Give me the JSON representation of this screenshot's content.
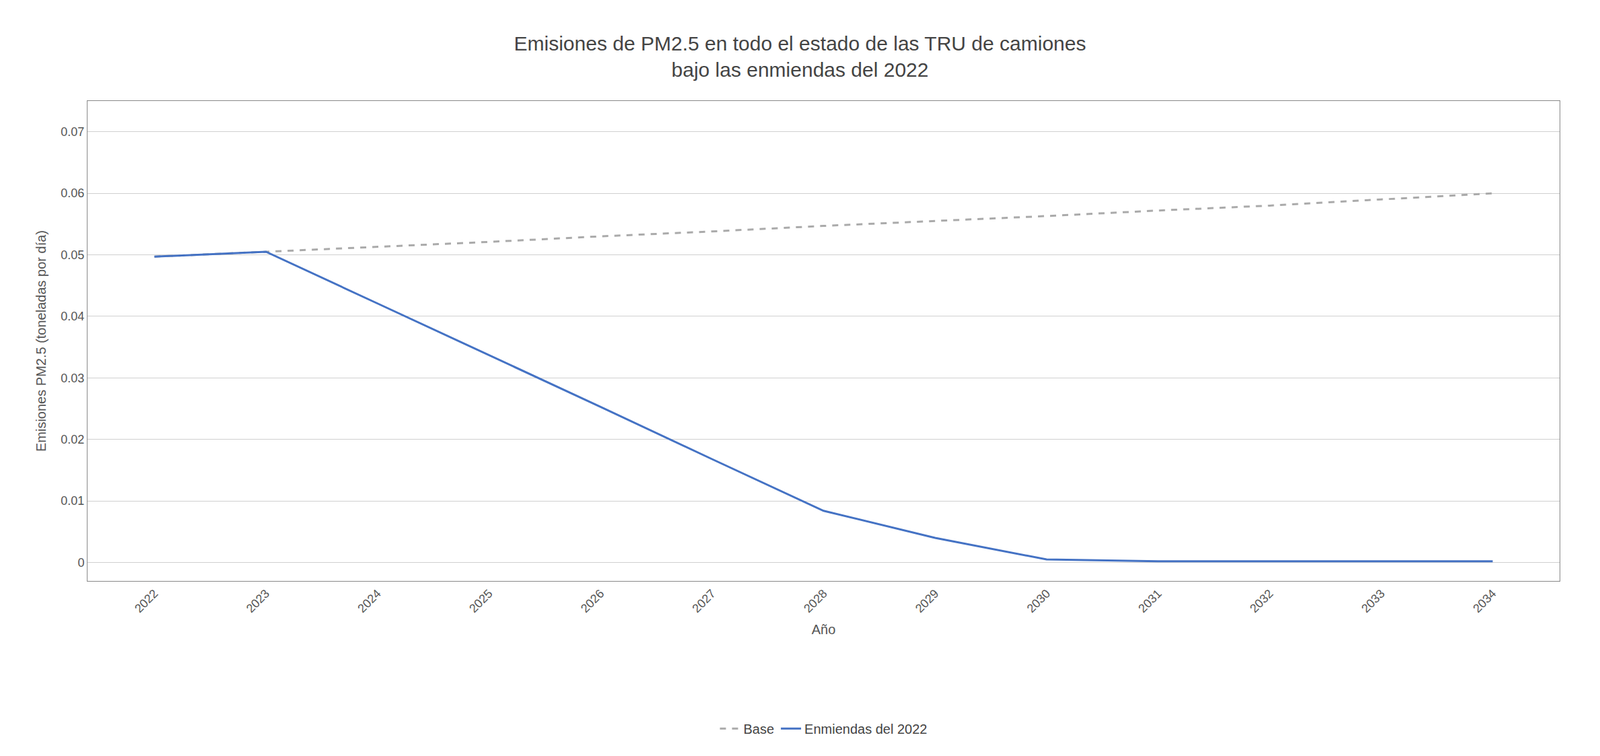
{
  "chart_data": {
    "type": "line",
    "title": "Emisiones de PM2.5 en todo el estado de las TRU de camiones\nbajo las enmiendas del 2022",
    "x_label": "Año",
    "y_label": "Emisiones PM2.5 (toneladas por día)",
    "x": [
      2022,
      2023,
      2024,
      2025,
      2026,
      2027,
      2028,
      2029,
      2030,
      2031,
      2032,
      2033,
      2034
    ],
    "series": [
      {
        "name": "Base",
        "color": "#aaaaaa",
        "line_style": "dashed",
        "values": [
          0.0497,
          0.0505,
          0.0513,
          0.0521,
          0.053,
          0.0538,
          0.0547,
          0.0555,
          0.0563,
          0.0572,
          0.058,
          0.059,
          0.06
        ]
      },
      {
        "name": "Enmiendas del 2022",
        "color": "#4472c4",
        "line_style": "solid",
        "values": [
          0.0497,
          0.0505,
          0.0421,
          0.0337,
          0.0253,
          0.0168,
          0.0084,
          0.004,
          0.0005,
          0.0002,
          0.0002,
          0.0002,
          0.0002
        ]
      }
    ],
    "xlim": [
      2021.4,
      2034.6
    ],
    "xticks": [
      2022,
      2023,
      2024,
      2025,
      2026,
      2027,
      2028,
      2029,
      2030,
      2031,
      2032,
      2033,
      2034
    ],
    "ylim": [
      -0.003,
      0.075
    ],
    "yticks": [
      0,
      0.01,
      0.02,
      0.03,
      0.04,
      0.05,
      0.06,
      0.07
    ],
    "grid": "y",
    "legend": "bottom"
  }
}
